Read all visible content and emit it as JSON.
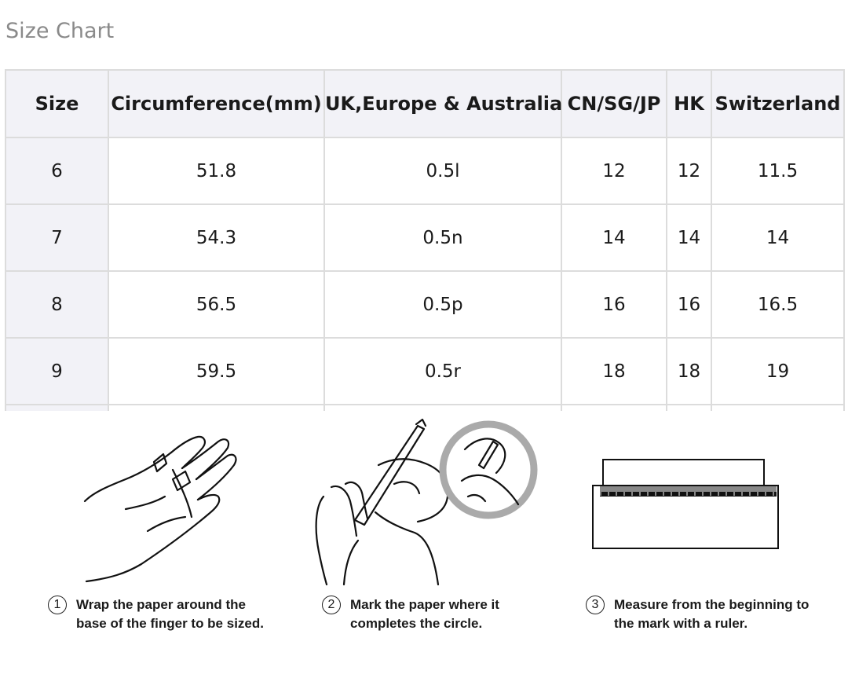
{
  "title": "Size Chart",
  "table": {
    "headers": [
      "Size",
      "Circumference(mm)",
      "UK,Europe & Australia",
      "CN/SG/JP",
      "HK",
      "Switzerland"
    ],
    "rows": [
      [
        "6",
        "51.8",
        "0.5l",
        "12",
        "12",
        "11.5"
      ],
      [
        "7",
        "54.3",
        "0.5n",
        "14",
        "14",
        "14"
      ],
      [
        "8",
        "56.5",
        "0.5p",
        "16",
        "16",
        "16.5"
      ],
      [
        "9",
        "59.5",
        "0.5r",
        "18",
        "18",
        "19"
      ]
    ]
  },
  "steps": [
    {
      "number": "1",
      "line1": "Wrap the paper around the",
      "line2": "base of the finger to be sized."
    },
    {
      "number": "2",
      "line1": "Mark the paper where it",
      "line2": "completes the circle."
    },
    {
      "number": "3",
      "line1": "Measure from the beginning to",
      "line2": "the mark with a ruler."
    }
  ]
}
